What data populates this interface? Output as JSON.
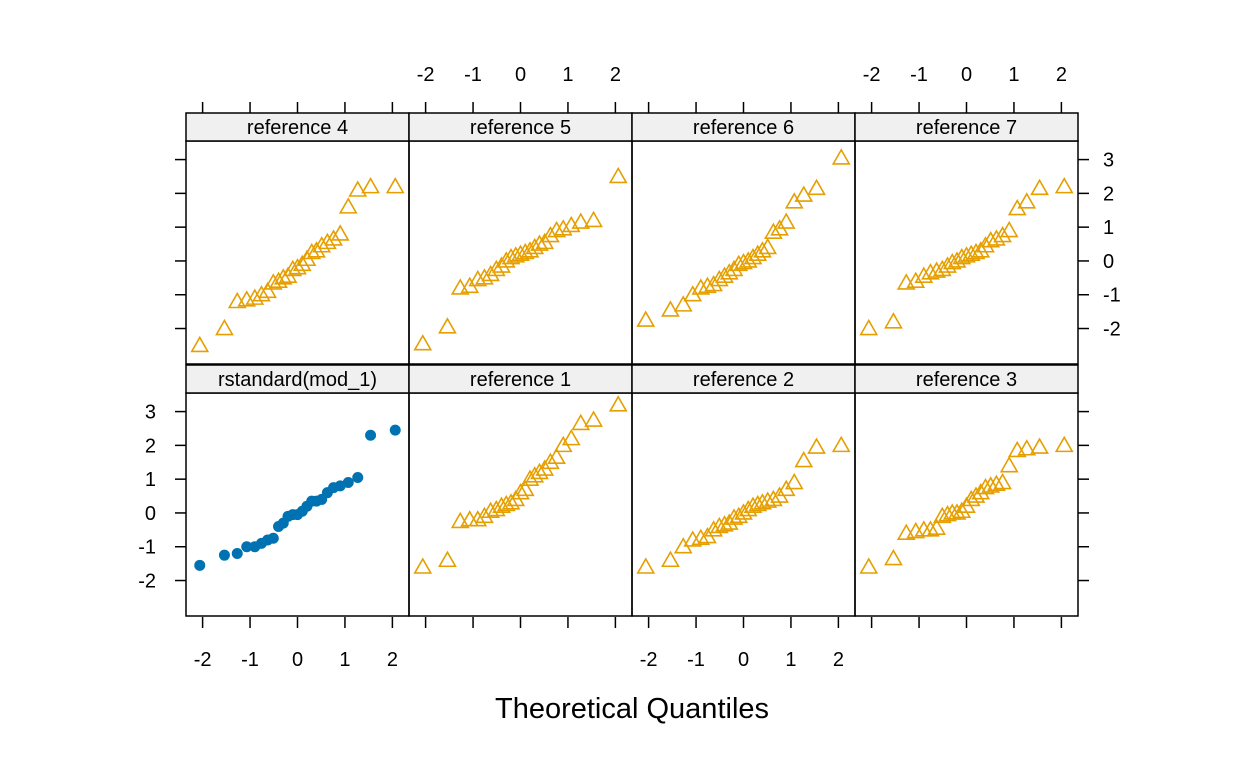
{
  "chart_data": {
    "type": "scatter",
    "xlabel": "Theoretical Quantiles",
    "ylabel": "",
    "xlim": [
      -2.35,
      2.35
    ],
    "ylim": [
      -3.05,
      3.55
    ],
    "x_ticks": [
      -2,
      -1,
      0,
      1,
      2
    ],
    "y_ticks": [
      -2,
      -1,
      0,
      1,
      2,
      3
    ],
    "grid": false,
    "colors": {
      "reference": "#E69F00",
      "observed": "#0072B2",
      "strip": "#F0F0F0",
      "frame": "#000000"
    },
    "markers": {
      "reference": "open-triangle",
      "observed": "filled-circle"
    },
    "panels": [
      {
        "name": "reference 4",
        "row": 0,
        "col": 0,
        "marker": "reference",
        "x": [
          -2.06,
          -1.54,
          -1.27,
          -1.07,
          -0.9,
          -0.76,
          -0.63,
          -0.51,
          -0.4,
          -0.3,
          -0.2,
          -0.1,
          0.0,
          0.1,
          0.2,
          0.3,
          0.4,
          0.51,
          0.63,
          0.76,
          0.9,
          1.07,
          1.27,
          1.54,
          2.06
        ],
        "y": [
          -2.5,
          -2.0,
          -1.2,
          -1.15,
          -1.1,
          -1.0,
          -0.9,
          -0.65,
          -0.6,
          -0.5,
          -0.45,
          -0.25,
          -0.2,
          -0.1,
          0.05,
          0.25,
          0.3,
          0.45,
          0.55,
          0.65,
          0.8,
          1.6,
          2.1,
          2.2,
          2.2
        ]
      },
      {
        "name": "reference 5",
        "row": 0,
        "col": 1,
        "marker": "reference",
        "x": [
          -2.06,
          -1.54,
          -1.27,
          -1.07,
          -0.9,
          -0.76,
          -0.63,
          -0.51,
          -0.4,
          -0.3,
          -0.2,
          -0.1,
          0.0,
          0.1,
          0.2,
          0.3,
          0.4,
          0.51,
          0.63,
          0.76,
          0.9,
          1.07,
          1.27,
          1.54,
          2.06
        ],
        "y": [
          -2.45,
          -1.95,
          -0.8,
          -0.75,
          -0.55,
          -0.5,
          -0.4,
          -0.25,
          -0.15,
          0.0,
          0.1,
          0.15,
          0.2,
          0.25,
          0.3,
          0.4,
          0.5,
          0.55,
          0.75,
          0.9,
          0.95,
          1.05,
          1.15,
          1.2,
          2.5
        ]
      },
      {
        "name": "reference 6",
        "row": 0,
        "col": 2,
        "marker": "reference",
        "x": [
          -2.06,
          -1.54,
          -1.27,
          -1.07,
          -0.9,
          -0.76,
          -0.63,
          -0.51,
          -0.4,
          -0.3,
          -0.2,
          -0.1,
          0.0,
          0.1,
          0.2,
          0.3,
          0.4,
          0.51,
          0.63,
          0.76,
          0.9,
          1.07,
          1.27,
          1.54,
          2.06
        ],
        "y": [
          -1.75,
          -1.45,
          -1.3,
          -1.0,
          -0.8,
          -0.75,
          -0.7,
          -0.55,
          -0.45,
          -0.35,
          -0.25,
          -0.1,
          -0.05,
          0.0,
          0.1,
          0.2,
          0.3,
          0.4,
          0.85,
          0.95,
          1.15,
          1.75,
          1.95,
          2.15,
          3.05
        ]
      },
      {
        "name": "reference 7",
        "row": 0,
        "col": 3,
        "marker": "reference",
        "x": [
          -2.06,
          -1.54,
          -1.27,
          -1.07,
          -0.9,
          -0.76,
          -0.63,
          -0.51,
          -0.4,
          -0.3,
          -0.2,
          -0.1,
          0.0,
          0.1,
          0.2,
          0.3,
          0.4,
          0.51,
          0.63,
          0.76,
          0.9,
          1.07,
          1.27,
          1.54,
          2.06
        ],
        "y": [
          -2.0,
          -1.8,
          -0.65,
          -0.6,
          -0.45,
          -0.35,
          -0.3,
          -0.25,
          -0.15,
          -0.05,
          0.0,
          0.1,
          0.15,
          0.2,
          0.25,
          0.3,
          0.45,
          0.6,
          0.65,
          0.75,
          0.9,
          1.55,
          1.75,
          2.15,
          2.2
        ]
      },
      {
        "name": "rstandard(mod_1)",
        "row": 1,
        "col": 0,
        "marker": "observed",
        "x": [
          -2.06,
          -1.54,
          -1.27,
          -1.07,
          -0.9,
          -0.76,
          -0.63,
          -0.51,
          -0.4,
          -0.3,
          -0.2,
          -0.1,
          0.0,
          0.1,
          0.2,
          0.3,
          0.4,
          0.51,
          0.63,
          0.76,
          0.9,
          1.07,
          1.27,
          1.54,
          2.06
        ],
        "y": [
          -1.55,
          -1.25,
          -1.2,
          -1.0,
          -1.0,
          -0.9,
          -0.8,
          -0.75,
          -0.4,
          -0.3,
          -0.1,
          -0.05,
          -0.05,
          0.05,
          0.2,
          0.35,
          0.35,
          0.4,
          0.6,
          0.75,
          0.8,
          0.9,
          1.05,
          2.3,
          2.45
        ]
      },
      {
        "name": "reference 1",
        "row": 1,
        "col": 1,
        "marker": "reference",
        "x": [
          -2.06,
          -1.54,
          -1.27,
          -1.07,
          -0.9,
          -0.76,
          -0.63,
          -0.51,
          -0.4,
          -0.3,
          -0.2,
          -0.1,
          0.0,
          0.1,
          0.2,
          0.3,
          0.4,
          0.51,
          0.63,
          0.76,
          0.9,
          1.07,
          1.27,
          1.54,
          2.06
        ],
        "y": [
          -1.6,
          -1.4,
          -0.25,
          -0.2,
          -0.2,
          -0.1,
          0.05,
          0.1,
          0.2,
          0.25,
          0.3,
          0.4,
          0.6,
          0.7,
          1.0,
          1.1,
          1.2,
          1.3,
          1.5,
          1.65,
          2.0,
          2.2,
          2.65,
          2.75,
          3.2
        ]
      },
      {
        "name": "reference 2",
        "row": 1,
        "col": 2,
        "marker": "reference",
        "x": [
          -2.06,
          -1.54,
          -1.27,
          -1.07,
          -0.9,
          -0.76,
          -0.63,
          -0.51,
          -0.4,
          -0.3,
          -0.2,
          -0.1,
          0.0,
          0.1,
          0.2,
          0.3,
          0.4,
          0.51,
          0.63,
          0.76,
          0.9,
          1.07,
          1.27,
          1.54,
          2.06
        ],
        "y": [
          -1.6,
          -1.4,
          -1.0,
          -0.8,
          -0.75,
          -0.7,
          -0.5,
          -0.4,
          -0.35,
          -0.3,
          -0.15,
          -0.1,
          0.0,
          0.1,
          0.2,
          0.25,
          0.3,
          0.35,
          0.4,
          0.5,
          0.7,
          0.9,
          1.55,
          1.95,
          2.0
        ]
      },
      {
        "name": "reference 3",
        "row": 1,
        "col": 3,
        "marker": "reference",
        "x": [
          -2.06,
          -1.54,
          -1.27,
          -1.07,
          -0.9,
          -0.76,
          -0.63,
          -0.51,
          -0.4,
          -0.3,
          -0.2,
          -0.1,
          0.0,
          0.1,
          0.2,
          0.3,
          0.4,
          0.51,
          0.63,
          0.76,
          0.9,
          1.07,
          1.27,
          1.54,
          2.06
        ],
        "y": [
          -1.6,
          -1.35,
          -0.6,
          -0.55,
          -0.5,
          -0.5,
          -0.45,
          -0.1,
          -0.05,
          0.0,
          0.0,
          0.05,
          0.2,
          0.4,
          0.5,
          0.6,
          0.75,
          0.8,
          0.85,
          0.9,
          1.4,
          1.85,
          1.9,
          1.95,
          2.0
        ]
      }
    ]
  }
}
